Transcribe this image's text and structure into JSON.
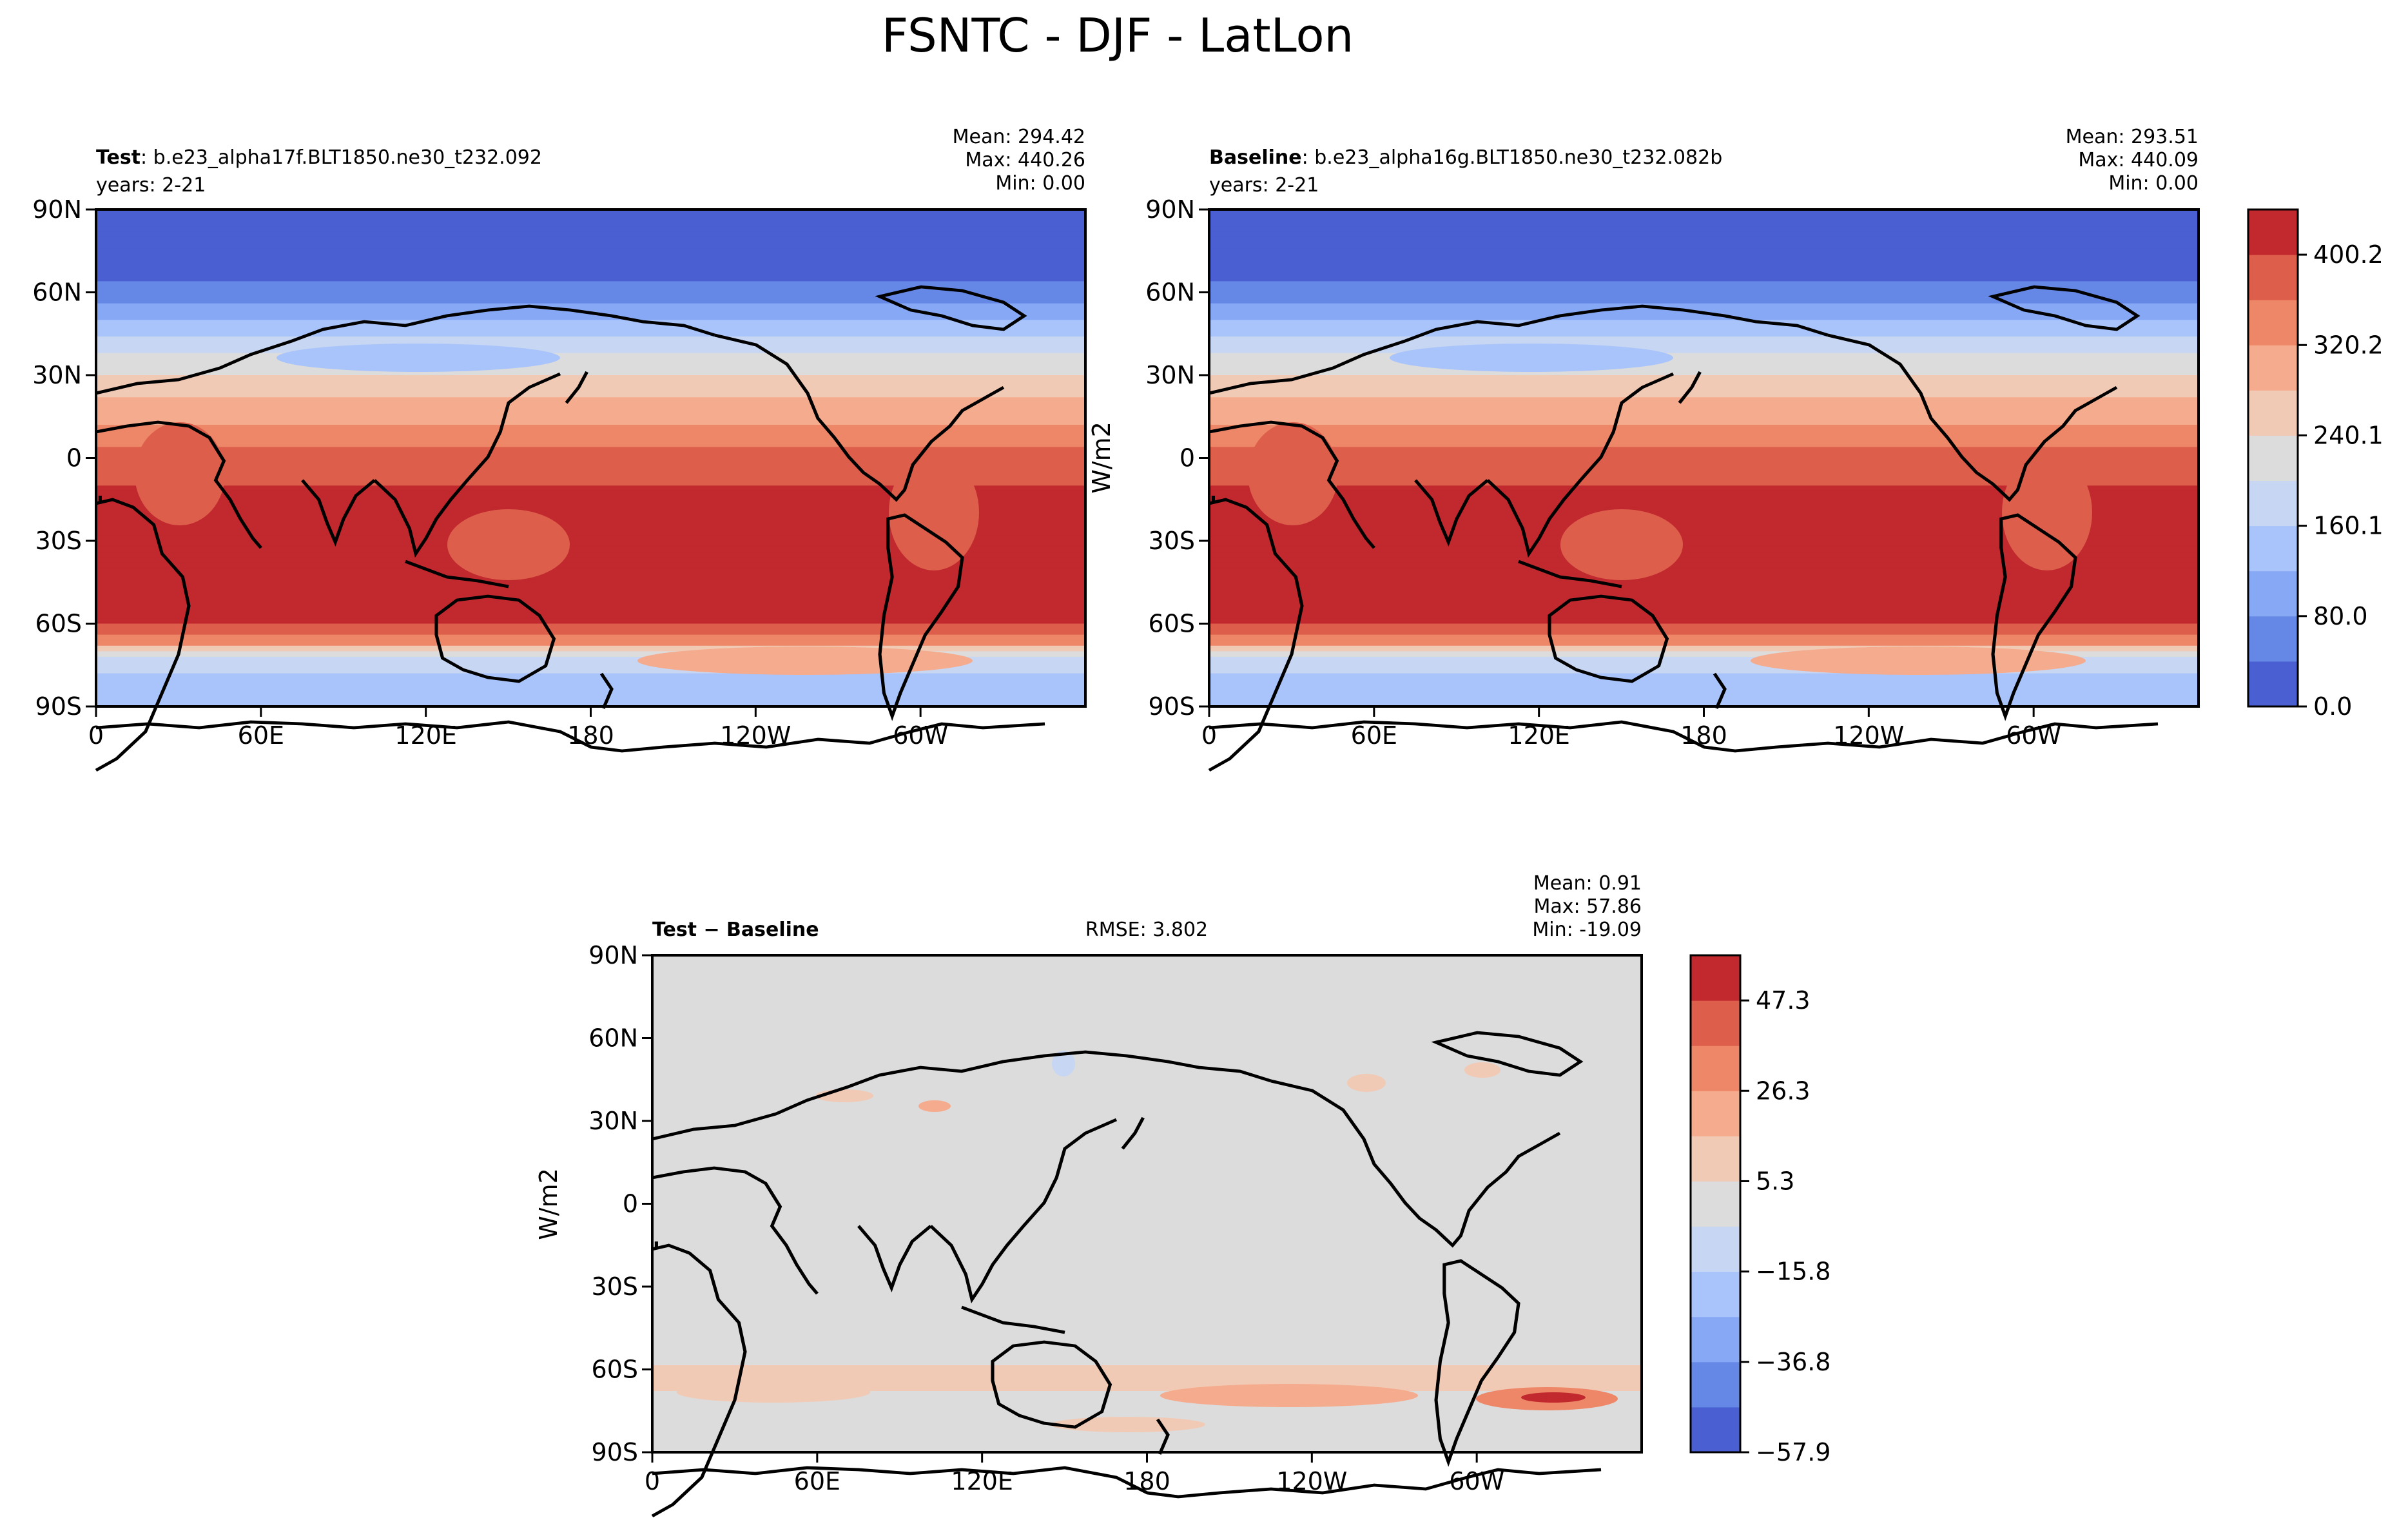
{
  "figure": {
    "title": "FSNTC - DJF - LatLon"
  },
  "chart_data": [
    {
      "type": "heatmap",
      "panel": "test",
      "label_bold": "Test",
      "label_rest": ": b.e23_alpha17f.BLT1850.ne30_t232.092",
      "years": "years: 2-21",
      "stats": {
        "mean": "Mean: 294.42",
        "max": "Max: 440.26",
        "min": "Min:  0.00"
      },
      "x_ticks": [
        "0",
        "60E",
        "120E",
        "180",
        "120W",
        "60W"
      ],
      "y_ticks": [
        "90N",
        "60N",
        "30N",
        "0",
        "30S",
        "60S",
        "90S"
      ],
      "xlim": [
        0,
        360
      ],
      "ylim": [
        -90,
        90
      ],
      "zonal_profile": {
        "lat": [
          90,
          80,
          70,
          62,
          55,
          48,
          42,
          35,
          28,
          20,
          12,
          5,
          -5,
          -15,
          -30,
          -45,
          -55,
          -62,
          -67,
          -72,
          -80,
          -90
        ],
        "value": [
          0,
          0,
          10,
          45,
          90,
          135,
          175,
          215,
          250,
          285,
          320,
          355,
          390,
          415,
          430,
          440,
          425,
          390,
          330,
          190,
          150,
          140
        ]
      }
    },
    {
      "type": "heatmap",
      "panel": "baseline",
      "label_bold": "Baseline",
      "label_rest": ": b.e23_alpha16g.BLT1850.ne30_t232.082b",
      "years": "years: 2-21",
      "stats": {
        "mean": "Mean: 293.51",
        "max": "Max: 440.09",
        "min": "Min:  0.00"
      },
      "x_ticks": [
        "0",
        "60E",
        "120E",
        "180",
        "120W",
        "60W"
      ],
      "y_ticks": [
        "90N",
        "60N",
        "30N",
        "0",
        "30S",
        "60S",
        "90S"
      ],
      "ylabel": "W/m2",
      "colorbar": {
        "ticks": [
          "0.0",
          "80.0",
          "160.1",
          "240.1",
          "320.2",
          "400.2"
        ],
        "levels": 11,
        "colors": [
          "#4a5fd1",
          "#6587e6",
          "#87a9f5",
          "#a8c4fb",
          "#c7d6f2",
          "#dddcdc",
          "#f1cab6",
          "#f5ab8d",
          "#ed8768",
          "#dd5f4b",
          "#c1292e"
        ]
      }
    },
    {
      "type": "heatmap",
      "panel": "difference",
      "label_bold": "Test − Baseline",
      "rmse": "RMSE: 3.802",
      "stats": {
        "mean": "Mean:  0.91",
        "max": "Max: 57.86",
        "min": "Min: -19.09"
      },
      "x_ticks": [
        "0",
        "60E",
        "120E",
        "180",
        "120W",
        "60W"
      ],
      "y_ticks": [
        "90N",
        "60N",
        "30N",
        "0",
        "30S",
        "60S",
        "90S"
      ],
      "ylabel": "W/m2",
      "background_value": 0,
      "colorbar": {
        "ticks": [
          "−57.9",
          "−36.8",
          "−15.8",
          "5.3",
          "26.3",
          "47.3"
        ],
        "levels": 11,
        "colors": [
          "#4a5fd1",
          "#6587e6",
          "#87a9f5",
          "#a8c4fb",
          "#c7d6f2",
          "#dddcdc",
          "#f1cab6",
          "#f5ab8d",
          "#ed8768",
          "#dd5f4b",
          "#c1292e"
        ]
      }
    }
  ]
}
